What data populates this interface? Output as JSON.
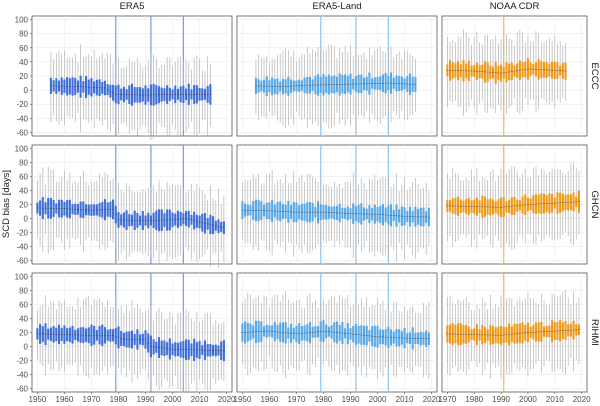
{
  "chart_data": {
    "type": "boxplot",
    "ylabel": "SCD bias [days]",
    "ylim": [
      -65,
      105
    ],
    "y_ticks": [
      -60,
      -40,
      -20,
      0,
      20,
      40,
      60,
      80,
      100
    ],
    "columns": [
      {
        "name": "ERA5",
        "x_range": [
          1948,
          2022
        ],
        "x_ticks": [
          1950,
          1960,
          1970,
          1980,
          1990,
          2000,
          2010,
          2020
        ],
        "vlines": [
          1979,
          1992,
          2004
        ],
        "vline_color": "#6f9ee6",
        "box_color": "#3f6fd8",
        "period_by_row": [
          [
            1955,
            2014
          ],
          [
            1950,
            2019
          ],
          [
            1950,
            2019
          ]
        ]
      },
      {
        "name": "ERA5-Land",
        "x_range": [
          1948,
          2022
        ],
        "x_ticks": [
          1950,
          1960,
          1970,
          1980,
          1990,
          2000,
          2010,
          2020
        ],
        "vlines": [
          1979,
          1992,
          2004
        ],
        "vline_color": "#8cc3ee",
        "box_color": "#5aa8e6",
        "period_by_row": [
          [
            1955,
            2014
          ],
          [
            1950,
            2019
          ],
          [
            1950,
            2019
          ]
        ]
      },
      {
        "name": "NOAA CDR",
        "x_range": [
          1968,
          2022
        ],
        "x_ticks": [
          1970,
          1980,
          1990,
          2000,
          2010,
          2020
        ],
        "vlines": [
          1991
        ],
        "vline_color": "#f2b45a",
        "box_color": "#f09a19",
        "period_by_row": [
          [
            1970,
            2014
          ],
          [
            1970,
            2019
          ],
          [
            1970,
            2019
          ]
        ]
      }
    ],
    "rows": [
      {
        "name": "ECCC",
        "median_by_column": [
          [
            [
              1955,
              6
            ],
            [
              1965,
              5
            ],
            [
              1975,
              3
            ],
            [
              1979,
              -6
            ],
            [
              1990,
              -7
            ],
            [
              2000,
              -6
            ],
            [
              2014,
              -6
            ]
          ],
          [
            [
              1955,
              6
            ],
            [
              1965,
              5
            ],
            [
              1975,
              7
            ],
            [
              1985,
              8
            ],
            [
              1995,
              9
            ],
            [
              2005,
              10
            ],
            [
              2014,
              8
            ]
          ],
          [
            [
              1970,
              28
            ],
            [
              1980,
              27
            ],
            [
              1990,
              24
            ],
            [
              2000,
              30
            ],
            [
              2010,
              28
            ],
            [
              2014,
              27
            ]
          ]
        ]
      },
      {
        "name": "GHCN",
        "median_by_column": [
          [
            [
              1950,
              15
            ],
            [
              1960,
              14
            ],
            [
              1970,
              12
            ],
            [
              1978,
              13
            ],
            [
              1980,
              -2
            ],
            [
              1990,
              -3
            ],
            [
              2000,
              -2
            ],
            [
              2005,
              0
            ],
            [
              2010,
              -5
            ],
            [
              2019,
              -13
            ]
          ],
          [
            [
              1950,
              12
            ],
            [
              1960,
              11
            ],
            [
              1970,
              9
            ],
            [
              1980,
              9
            ],
            [
              1990,
              7
            ],
            [
              2000,
              6
            ],
            [
              2010,
              3
            ],
            [
              2019,
              2
            ]
          ],
          [
            [
              1970,
              18
            ],
            [
              1980,
              17
            ],
            [
              1990,
              16
            ],
            [
              2000,
              20
            ],
            [
              2010,
              22
            ],
            [
              2019,
              24
            ]
          ]
        ]
      },
      {
        "name": "RIHMI",
        "median_by_column": [
          [
            [
              1950,
              18
            ],
            [
              1960,
              17
            ],
            [
              1970,
              16
            ],
            [
              1978,
              16
            ],
            [
              1982,
              10
            ],
            [
              1990,
              10
            ],
            [
              1992,
              0
            ],
            [
              2000,
              -4
            ],
            [
              2010,
              -5
            ],
            [
              2019,
              -6
            ]
          ],
          [
            [
              1950,
              20
            ],
            [
              1960,
              22
            ],
            [
              1970,
              18
            ],
            [
              1980,
              22
            ],
            [
              1990,
              18
            ],
            [
              2000,
              14
            ],
            [
              2010,
              12
            ],
            [
              2019,
              11
            ]
          ],
          [
            [
              1970,
              18
            ],
            [
              1980,
              17
            ],
            [
              1990,
              16
            ],
            [
              2000,
              20
            ],
            [
              2010,
              22
            ],
            [
              2019,
              24
            ]
          ]
        ]
      }
    ]
  }
}
